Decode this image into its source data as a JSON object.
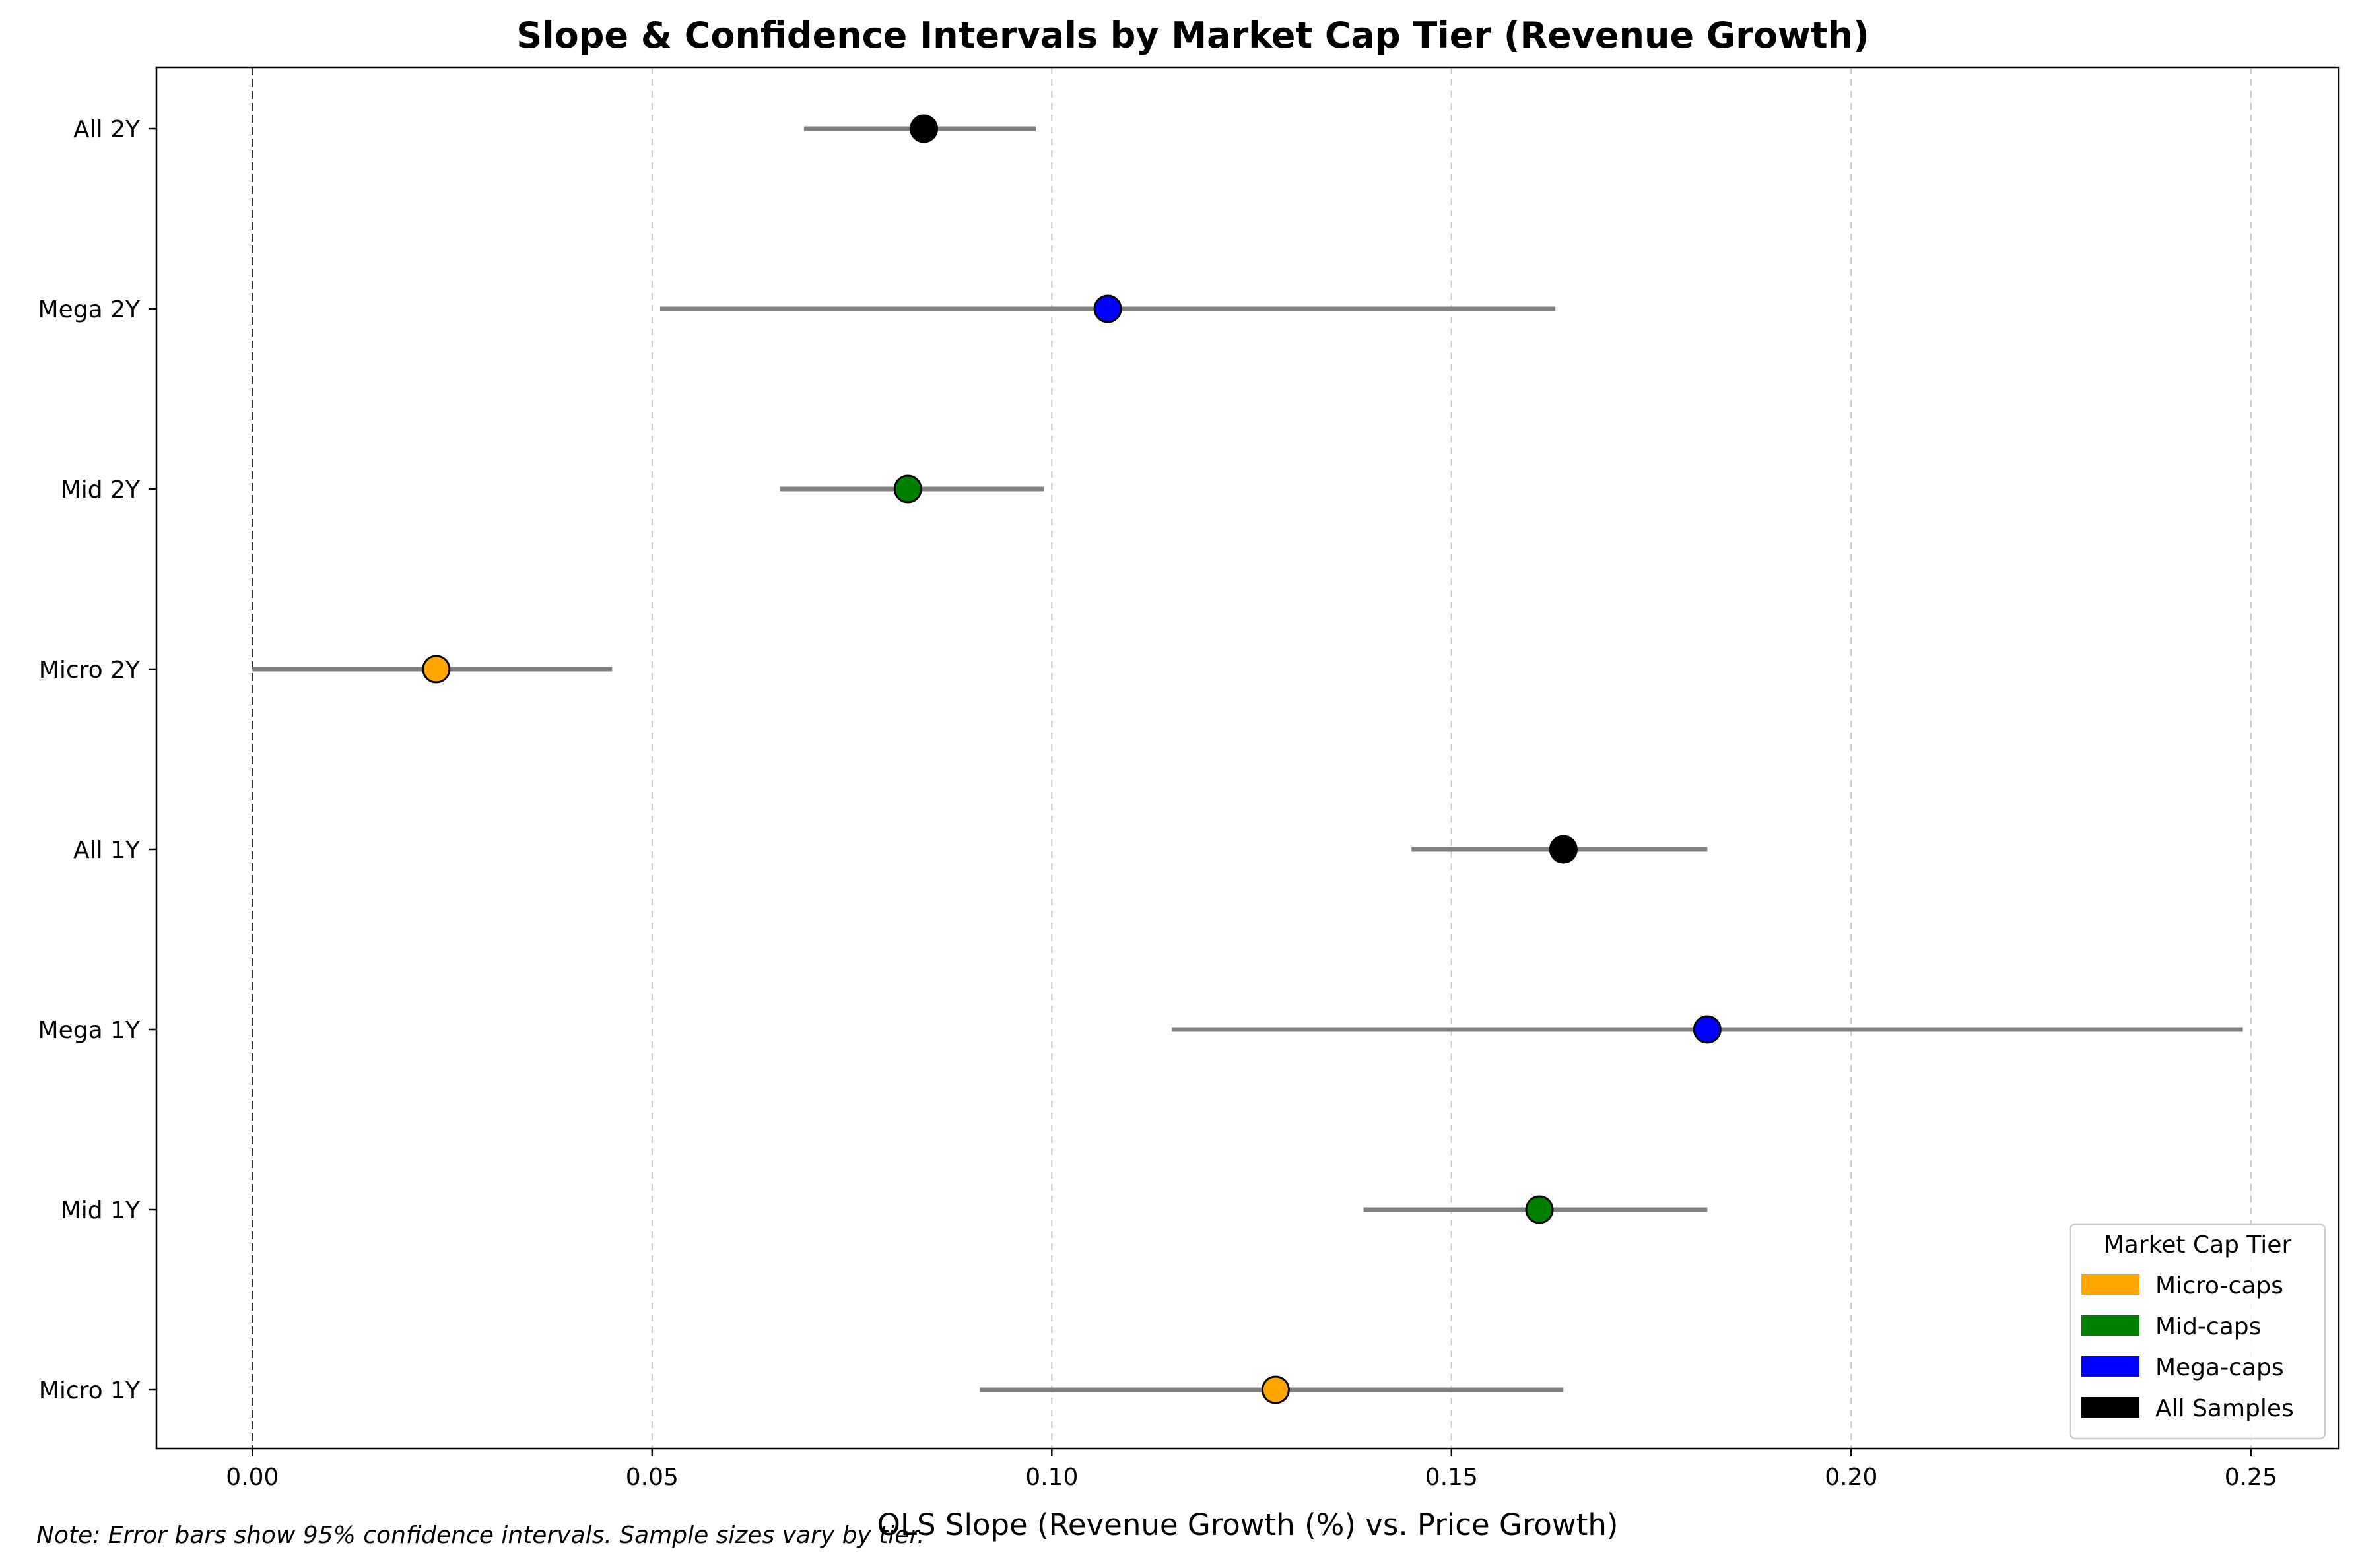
{
  "chart_data": {
    "type": "errorbar",
    "title": "Slope & Confidence Intervals by Market Cap Tier (Revenue Growth)",
    "xlabel": "OLS Slope (Revenue Growth (%) vs. Price Growth)",
    "ylabel": "",
    "xlim": [
      -0.012,
      0.261
    ],
    "x_ticks": [
      0.0,
      0.05,
      0.1,
      0.15,
      0.2,
      0.25
    ],
    "x_tick_labels": [
      "0.00",
      "0.05",
      "0.10",
      "0.15",
      "0.20",
      "0.25"
    ],
    "grid": "x-dashed",
    "reference_line_x": 0,
    "categories": [
      "All 2Y",
      "Mega 2Y",
      "Mid 2Y",
      "Micro 2Y",
      "All 1Y",
      "Mega 1Y",
      "Mid 1Y",
      "Micro 1Y"
    ],
    "points": [
      {
        "label": "All 2Y",
        "tier": "All Samples",
        "slope": 0.084,
        "ci_low": 0.069,
        "ci_high": 0.098
      },
      {
        "label": "Mega 2Y",
        "tier": "Mega-caps",
        "slope": 0.107,
        "ci_low": 0.051,
        "ci_high": 0.163
      },
      {
        "label": "Mid 2Y",
        "tier": "Mid-caps",
        "slope": 0.082,
        "ci_low": 0.066,
        "ci_high": 0.099
      },
      {
        "label": "Micro 2Y",
        "tier": "Micro-caps",
        "slope": 0.023,
        "ci_low": 0.0,
        "ci_high": 0.045
      },
      {
        "label": "All 1Y",
        "tier": "All Samples",
        "slope": 0.164,
        "ci_low": 0.145,
        "ci_high": 0.182
      },
      {
        "label": "Mega 1Y",
        "tier": "Mega-caps",
        "slope": 0.182,
        "ci_low": 0.115,
        "ci_high": 0.249
      },
      {
        "label": "Mid 1Y",
        "tier": "Mid-caps",
        "slope": 0.161,
        "ci_low": 0.139,
        "ci_high": 0.182
      },
      {
        "label": "Micro 1Y",
        "tier": "Micro-caps",
        "slope": 0.128,
        "ci_low": 0.091,
        "ci_high": 0.164
      }
    ],
    "legend": {
      "title": "Market Cap Tier",
      "placement": "bottom-right",
      "entries": [
        {
          "name": "Micro-caps",
          "color": "#FFA500"
        },
        {
          "name": "Mid-caps",
          "color": "#008000"
        },
        {
          "name": "Mega-caps",
          "color": "#0000FF"
        },
        {
          "name": "All Samples",
          "color": "#000000"
        }
      ]
    },
    "errorbar_color": "#808080",
    "note": "Note: Error bars show 95% confidence intervals. Sample sizes vary by tier."
  }
}
